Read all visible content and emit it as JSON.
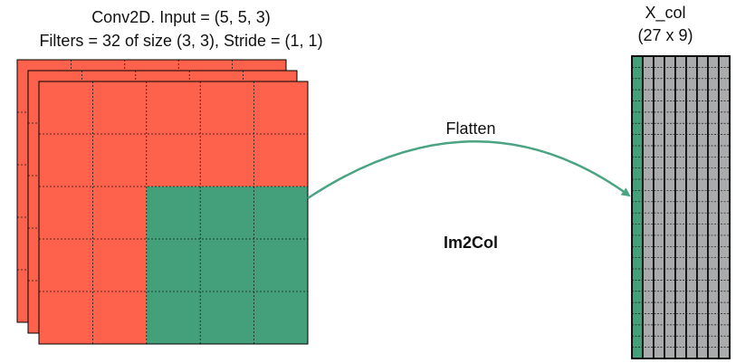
{
  "diagram": {
    "title_line1": "Conv2D. Input = (5, 5, 3)",
    "title_line2": "Filters = 32 of size (3, 3), Stride = (1, 1)",
    "arrow_label": "Flatten",
    "operation_label": "Im2Col",
    "output_name": "X_col",
    "output_shape": "(27 x 9)"
  },
  "input_volume": {
    "rows": 5,
    "cols": 5,
    "channels": 3,
    "filter_rows": 3,
    "filter_cols": 3,
    "input_color": "#fe624d",
    "filter_color": "#43a07b"
  },
  "output_matrix": {
    "rows": 27,
    "cols": 9,
    "highlight_cols": 1,
    "column_color": "#a9abad",
    "highlight_color": "#43a07b"
  },
  "colors": {
    "arrow": "#4aa482",
    "grid_line": "#1a1a1a"
  }
}
